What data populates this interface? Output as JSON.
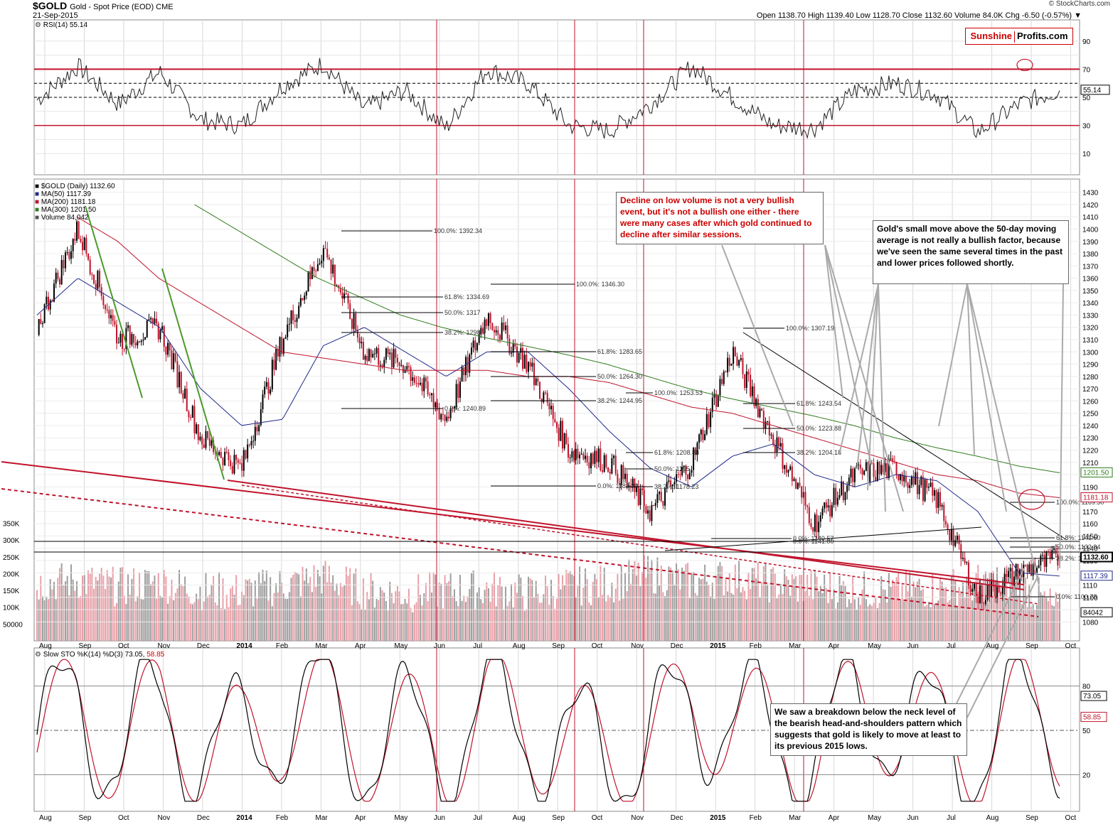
{
  "header": {
    "title": "$GOLD",
    "subtitle": "Gold - Spot Price (EOD) CME",
    "date": "21-Sep-2015",
    "source": "© StockCharts.com",
    "stats": "Open 1138.70  High 1139.40  Low 1128.70  Close 1132.60  Volume 84.0K  Chg -6.50 (-0.57%) ▼"
  },
  "logo": {
    "left": "Sunshine",
    "right": "Profits.com"
  },
  "rsi_panel": {
    "label": "RSI(14) 55.14",
    "current": "55.14",
    "ticks": [
      "90",
      "70",
      "50",
      "30",
      "10"
    ]
  },
  "price_panel": {
    "legend": [
      {
        "text": "$GOLD (Daily) 1132.60",
        "color": "#000000"
      },
      {
        "text": "MA(50) 1117.39",
        "color": "#1f2a8a"
      },
      {
        "text": "MA(200) 1181.18",
        "color": "#c0142c"
      },
      {
        "text": "MA(300) 1201.50",
        "color": "#2e7d1c"
      },
      {
        "text": "Volume 84,042",
        "color": "#555555"
      }
    ],
    "price_ticks": [
      "1430",
      "1420",
      "1410",
      "1400",
      "1390",
      "1380",
      "1370",
      "1360",
      "1350",
      "1340",
      "1330",
      "1320",
      "1310",
      "1300",
      "1290",
      "1280",
      "1270",
      "1260",
      "1250",
      "1240",
      "1230",
      "1220",
      "1210",
      "1200",
      "1190",
      "1180",
      "1170",
      "1160",
      "1150",
      "1140",
      "1130",
      "1120",
      "1110",
      "1100",
      "1090",
      "1080"
    ],
    "volume_ticks": [
      "350K",
      "300K",
      "250K",
      "200K",
      "150K",
      "100K",
      "50000"
    ],
    "value_tags": [
      {
        "text": "1201.50",
        "kind": "green"
      },
      {
        "text": "1181.18",
        "kind": "red"
      },
      {
        "text": "1132.60",
        "kind": "black"
      },
      {
        "text": "1117.39",
        "kind": "blue"
      },
      {
        "text": "84042",
        "kind": "black"
      }
    ],
    "fib_labels": [
      "100.0%: 1392.34",
      "100.0%: 1346.30",
      "61.8%: 1334.69",
      "50.0%: 1317",
      "38.2%: 1298.7",
      "0.0%: 1240.89",
      "61.8%: 1283.65",
      "50.0%: 1264.30",
      "38.2%: 1244.95",
      "0.0%: 1182.30",
      "100.0%: 1253.53",
      "61.8%: 1208.88",
      "50.0%: 1195",
      "38.2%: 1178.23",
      "0.0%: 1140.57",
      "100.0%: 1307.19",
      "61.8%: 1243.54",
      "50.0%: 1223.88",
      "38.2%: 1204.18",
      "0.0%: 1141.00",
      "100.0%: 1169.30",
      "61.8%: 1141.60",
      "50.0%: 1132.84",
      "38.2%: 1124.05",
      "0.0%: 1100.78"
    ]
  },
  "sto_panel": {
    "label_a": "Slow STO %K(14) %D(3) 73.05,",
    "label_b": "58.85",
    "tag_k": "73.05",
    "tag_d": "58.85",
    "ticks": [
      "80",
      "50",
      "20"
    ]
  },
  "x_axis": [
    "Aug",
    "Sep",
    "Oct",
    "Nov",
    "Dec",
    "2014",
    "Feb",
    "Mar",
    "Apr",
    "May",
    "Jun",
    "Jul",
    "Aug",
    "Sep",
    "Oct",
    "Nov",
    "Dec",
    "2015",
    "Feb",
    "Mar",
    "Apr",
    "May",
    "Jun",
    "Jul",
    "Aug",
    "Sep",
    "Oct"
  ],
  "notes": {
    "volume": "Decline on low volume is not a very bullish event, but it's not a bullish one either - there were many cases after which gold continued to decline after similar sessions.",
    "ma50": "Gold's small move above the 50-day moving average is not really a bullish factor, because we've seen the same several times in the past and lower prices followed shortly.",
    "hs": "We saw a breakdown below the neck level of the bearish head-and-shoulders pattern which suggests that gold is likely to move at least to its previous 2015 lows."
  },
  "colors": {
    "up": "#000000",
    "down": "#c0142c",
    "ma50": "#1f2a8a",
    "ma200": "#c0142c",
    "ma300": "#2e7d1c",
    "vol_up": "#9e9e9e",
    "vol_down": "#e8a0a8",
    "redline": "#c0142c"
  },
  "chart_data": [
    {
      "type": "line",
      "title": "RSI(14)",
      "ylim": [
        0,
        100
      ],
      "horizontal_lines": [
        70,
        30
      ],
      "x_dates": [
        "2013-08",
        "2013-09",
        "2013-10",
        "2013-11",
        "2013-12",
        "2014-01",
        "2014-02",
        "2014-03",
        "2014-04",
        "2014-05",
        "2014-06",
        "2014-07",
        "2014-08",
        "2014-09",
        "2014-10",
        "2014-11",
        "2014-12",
        "2015-01",
        "2015-02",
        "2015-03",
        "2015-04",
        "2015-05",
        "2015-06",
        "2015-07",
        "2015-08",
        "2015-09"
      ],
      "series": [
        {
          "name": "RSI(14)",
          "values": [
            48,
            72,
            45,
            68,
            34,
            30,
            58,
            74,
            42,
            55,
            28,
            70,
            60,
            30,
            26,
            45,
            72,
            50,
            30,
            28,
            55,
            60,
            52,
            25,
            45,
            55
          ]
        }
      ]
    },
    {
      "type": "line",
      "title": "$GOLD (Daily)",
      "ylim": [
        1075,
        1435
      ],
      "x_dates": [
        "2013-08",
        "2013-09",
        "2013-10",
        "2013-11",
        "2013-12",
        "2014-01",
        "2014-02",
        "2014-03",
        "2014-04",
        "2014-05",
        "2014-06",
        "2014-07",
        "2014-08",
        "2014-09",
        "2014-10",
        "2014-11",
        "2014-12",
        "2015-01",
        "2015-02",
        "2015-03",
        "2015-04",
        "2015-05",
        "2015-06",
        "2015-07",
        "2015-08",
        "2015-09"
      ],
      "series": [
        {
          "name": "$GOLD (Daily)",
          "values": [
            1320,
            1400,
            1310,
            1320,
            1230,
            1205,
            1310,
            1385,
            1300,
            1290,
            1245,
            1330,
            1290,
            1220,
            1210,
            1170,
            1210,
            1300,
            1230,
            1160,
            1200,
            1205,
            1180,
            1100,
            1120,
            1132.6
          ]
        },
        {
          "name": "MA(50)",
          "values": [
            1330,
            1360,
            1340,
            1320,
            1270,
            1240,
            1245,
            1305,
            1320,
            1300,
            1280,
            1300,
            1300,
            1270,
            1235,
            1205,
            1190,
            1215,
            1225,
            1200,
            1190,
            1200,
            1195,
            1170,
            1120,
            1117.39
          ]
        },
        {
          "name": "MA(200)",
          "values": [
            null,
            1410,
            1390,
            1360,
            1340,
            1320,
            1300,
            1295,
            1290,
            1285,
            1285,
            1285,
            1280,
            1280,
            1275,
            1265,
            1255,
            1250,
            1240,
            1230,
            1220,
            1210,
            1200,
            1195,
            1185,
            1181.18
          ]
        },
        {
          "name": "MA(300)",
          "values": [
            null,
            null,
            null,
            null,
            1420,
            1400,
            1380,
            1360,
            1345,
            1330,
            1320,
            1312,
            1305,
            1298,
            1290,
            1280,
            1270,
            1262,
            1255,
            1248,
            1240,
            1230,
            1222,
            1215,
            1207,
            1201.5
          ]
        }
      ]
    },
    {
      "type": "bar",
      "title": "Volume",
      "ylim": [
        0,
        370000
      ],
      "x_dates": [
        "2013-08",
        "2013-09",
        "2013-10",
        "2013-11",
        "2013-12",
        "2014-01",
        "2014-02",
        "2014-03",
        "2014-04",
        "2014-05",
        "2014-06",
        "2014-07",
        "2014-08",
        "2014-09",
        "2014-10",
        "2014-11",
        "2014-12",
        "2015-01",
        "2015-02",
        "2015-03",
        "2015-04",
        "2015-05",
        "2015-06",
        "2015-07",
        "2015-08",
        "2015-09"
      ],
      "series": [
        {
          "name": "Volume",
          "values": [
            170000,
            180000,
            160000,
            175000,
            150000,
            145000,
            165000,
            190000,
            150000,
            140000,
            150000,
            155000,
            140000,
            160000,
            170000,
            200000,
            175000,
            190000,
            170000,
            160000,
            150000,
            150000,
            155000,
            170000,
            175000,
            84042
          ]
        }
      ]
    },
    {
      "type": "line",
      "title": "Slow STO %K(14) %D(3)",
      "ylim": [
        0,
        100
      ],
      "x_dates": [
        "2013-08",
        "2013-09",
        "2013-10",
        "2013-11",
        "2013-12",
        "2014-01",
        "2014-02",
        "2014-03",
        "2014-04",
        "2014-05",
        "2014-06",
        "2014-07",
        "2014-08",
        "2014-09",
        "2014-10",
        "2014-11",
        "2014-12",
        "2015-01",
        "2015-02",
        "2015-03",
        "2015-04",
        "2015-05",
        "2015-06",
        "2015-07",
        "2015-08",
        "2015-09"
      ],
      "series": [
        {
          "name": "%K(14)",
          "values": [
            40,
            95,
            10,
            90,
            15,
            10,
            85,
            95,
            20,
            45,
            5,
            95,
            60,
            10,
            8,
            35,
            90,
            95,
            20,
            10,
            85,
            90,
            30,
            10,
            90,
            73.05
          ]
        },
        {
          "name": "%D(3)",
          "values": [
            38,
            90,
            15,
            85,
            18,
            12,
            80,
            92,
            25,
            42,
            8,
            92,
            62,
            14,
            10,
            32,
            85,
            93,
            25,
            12,
            80,
            88,
            35,
            12,
            85,
            58.85
          ]
        }
      ]
    }
  ]
}
